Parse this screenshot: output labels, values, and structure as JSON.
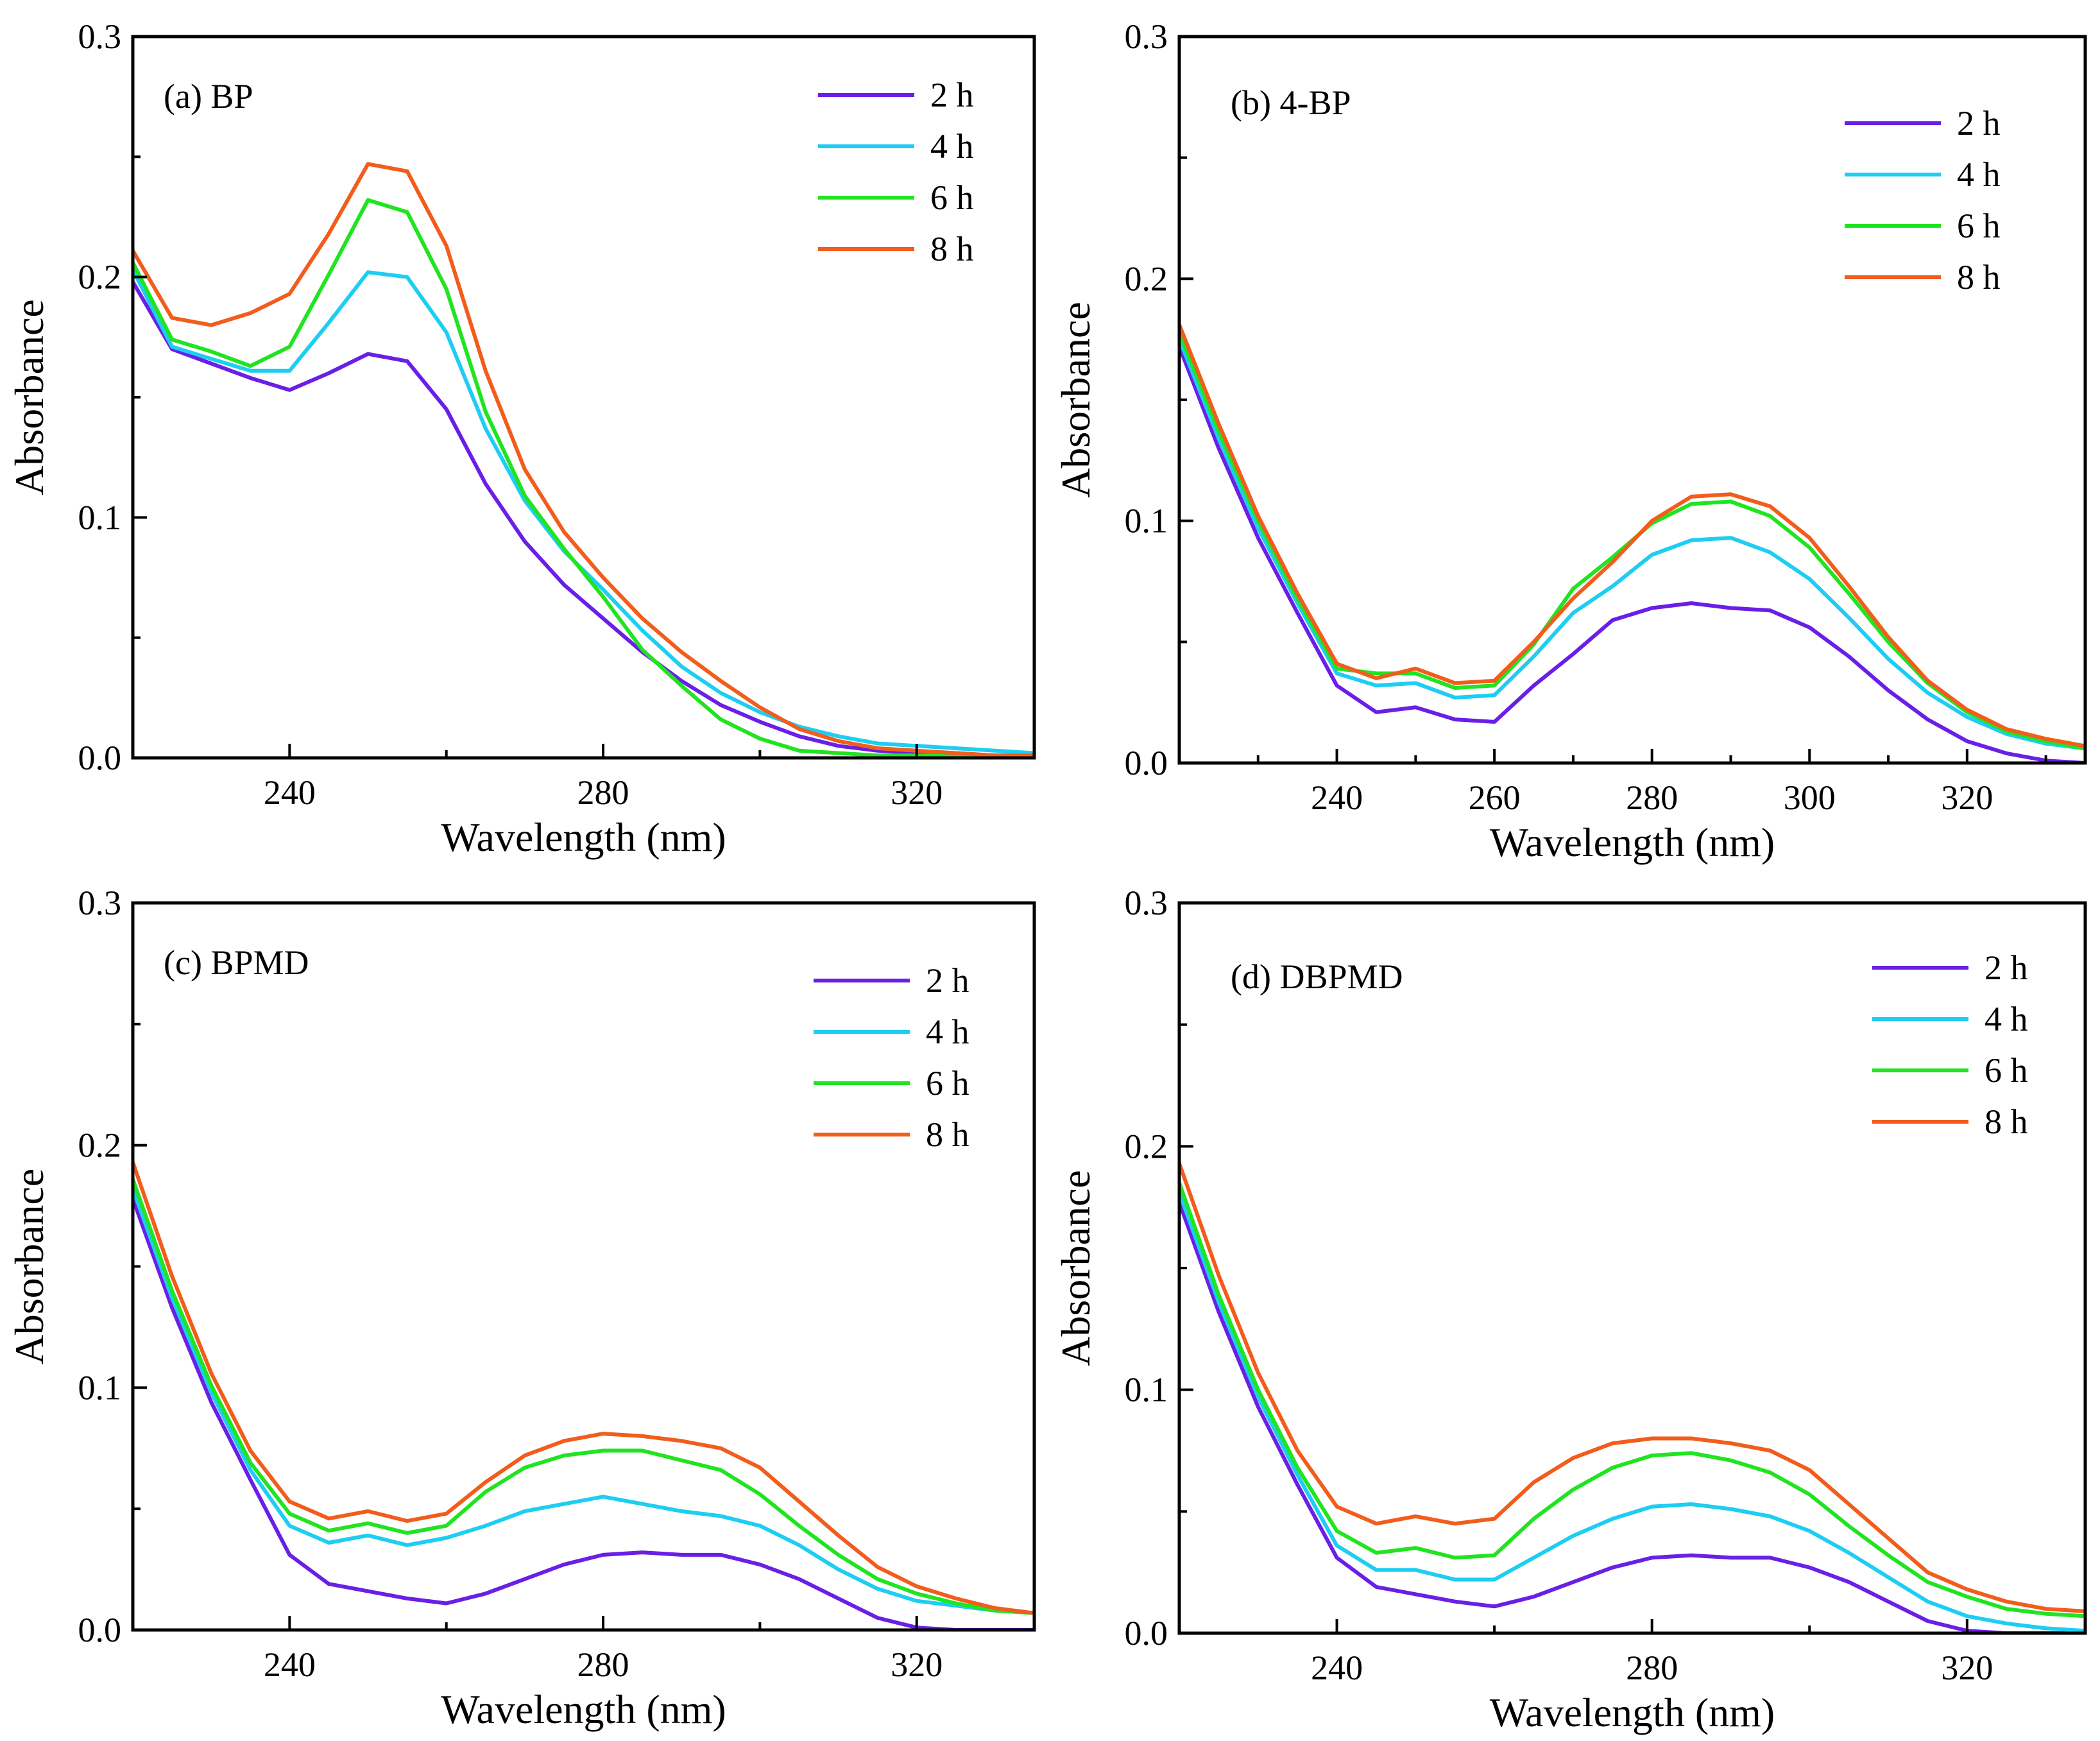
{
  "chart_data": [
    {
      "type": "line",
      "title": "(a) BP",
      "xlabel": "Wavelength (nm)",
      "ylabel": "Absorbance",
      "xlim": [
        220,
        335
      ],
      "ylim": [
        0,
        0.3
      ],
      "xticks": [
        240,
        280,
        320
      ],
      "xtick_labels": [
        "240",
        "280",
        "320"
      ],
      "yticks": [
        0,
        0.1,
        0.2,
        0.3
      ],
      "ytick_labels": [
        "0.0",
        "0.1",
        "0.2",
        "0.3"
      ],
      "legend_position": "top-right",
      "x": [
        220,
        225,
        230,
        235,
        240,
        245,
        250,
        255,
        260,
        265,
        270,
        275,
        280,
        285,
        290,
        295,
        300,
        305,
        310,
        315,
        320,
        325,
        330,
        335
      ],
      "series": [
        {
          "name": "2 h",
          "color": "#6a1fe6",
          "values": [
            0.198,
            0.17,
            0.164,
            0.158,
            0.153,
            0.16,
            0.168,
            0.165,
            0.145,
            0.114,
            0.09,
            0.072,
            0.058,
            0.044,
            0.032,
            0.022,
            0.015,
            0.009,
            0.005,
            0.003,
            0.002,
            0.002,
            0.001,
            0.001
          ]
        },
        {
          "name": "4 h",
          "color": "#1ecdf2",
          "values": [
            0.203,
            0.171,
            0.166,
            0.161,
            0.161,
            0.181,
            0.202,
            0.2,
            0.177,
            0.137,
            0.107,
            0.086,
            0.07,
            0.053,
            0.038,
            0.027,
            0.019,
            0.013,
            0.009,
            0.006,
            0.005,
            0.004,
            0.003,
            0.002
          ]
        },
        {
          "name": "6 h",
          "color": "#21e421",
          "values": [
            0.206,
            0.174,
            0.169,
            0.163,
            0.171,
            0.201,
            0.232,
            0.227,
            0.195,
            0.144,
            0.109,
            0.087,
            0.067,
            0.045,
            0.03,
            0.016,
            0.008,
            0.003,
            0.002,
            0.001,
            0.001,
            0.001,
            0.0,
            0.0
          ]
        },
        {
          "name": "8 h",
          "color": "#f25c1c",
          "values": [
            0.211,
            0.183,
            0.18,
            0.185,
            0.193,
            0.218,
            0.247,
            0.244,
            0.213,
            0.161,
            0.12,
            0.094,
            0.075,
            0.058,
            0.044,
            0.032,
            0.021,
            0.012,
            0.007,
            0.004,
            0.003,
            0.002,
            0.001,
            0.001
          ]
        }
      ]
    },
    {
      "type": "line",
      "title": "(b) 4-BP",
      "xlabel": "Wavelength (nm)",
      "ylabel": "Absorbance",
      "xlim": [
        220,
        335
      ],
      "ylim": [
        0,
        0.3
      ],
      "xticks": [
        240,
        260,
        280,
        300,
        320
      ],
      "xtick_labels": [
        "240",
        "260",
        "280",
        "300",
        "320"
      ],
      "yticks": [
        0,
        0.1,
        0.2,
        0.3
      ],
      "ytick_labels": [
        "0.0",
        "0.1",
        "0.2",
        "0.3"
      ],
      "legend_position": "top-right",
      "x": [
        220,
        225,
        230,
        235,
        240,
        245,
        250,
        255,
        260,
        265,
        270,
        275,
        280,
        285,
        290,
        295,
        300,
        305,
        310,
        315,
        320,
        325,
        330,
        335
      ],
      "series": [
        {
          "name": "2 h",
          "color": "#6a1fe6",
          "values": [
            0.172,
            0.13,
            0.093,
            0.062,
            0.032,
            0.021,
            0.023,
            0.018,
            0.017,
            0.032,
            0.045,
            0.059,
            0.064,
            0.066,
            0.064,
            0.063,
            0.056,
            0.044,
            0.03,
            0.018,
            0.009,
            0.004,
            0.001,
            0.0
          ]
        },
        {
          "name": "4 h",
          "color": "#1ecdf2",
          "values": [
            0.175,
            0.134,
            0.097,
            0.066,
            0.037,
            0.032,
            0.033,
            0.027,
            0.028,
            0.044,
            0.062,
            0.073,
            0.086,
            0.092,
            0.093,
            0.087,
            0.076,
            0.06,
            0.043,
            0.029,
            0.019,
            0.012,
            0.008,
            0.006
          ]
        },
        {
          "name": "6 h",
          "color": "#21e421",
          "values": [
            0.178,
            0.137,
            0.1,
            0.068,
            0.039,
            0.037,
            0.037,
            0.031,
            0.032,
            0.049,
            0.072,
            0.085,
            0.099,
            0.107,
            0.108,
            0.102,
            0.089,
            0.07,
            0.05,
            0.033,
            0.021,
            0.013,
            0.009,
            0.006
          ]
        },
        {
          "name": "8 h",
          "color": "#f25c1c",
          "values": [
            0.181,
            0.14,
            0.102,
            0.07,
            0.041,
            0.035,
            0.039,
            0.033,
            0.034,
            0.05,
            0.068,
            0.083,
            0.1,
            0.11,
            0.111,
            0.106,
            0.093,
            0.073,
            0.052,
            0.034,
            0.022,
            0.014,
            0.01,
            0.007
          ]
        }
      ]
    },
    {
      "type": "line",
      "title": "(c) BPMD",
      "xlabel": "Wavelength (nm)",
      "ylabel": "Absorbance",
      "xlim": [
        220,
        335
      ],
      "ylim": [
        0,
        0.3
      ],
      "xticks": [
        240,
        280,
        320
      ],
      "xtick_labels": [
        "240",
        "280",
        "320"
      ],
      "yticks": [
        0,
        0.1,
        0.2,
        0.3
      ],
      "ytick_labels": [
        "0.0",
        "0.1",
        "0.2",
        "0.3"
      ],
      "legend_position": "top-right",
      "x": [
        220,
        225,
        230,
        235,
        240,
        245,
        250,
        255,
        260,
        265,
        270,
        275,
        280,
        285,
        290,
        295,
        300,
        305,
        310,
        315,
        320,
        325,
        330,
        335
      ],
      "series": [
        {
          "name": "2 h",
          "color": "#6a1fe6",
          "values": [
            0.178,
            0.133,
            0.094,
            0.062,
            0.031,
            0.019,
            0.016,
            0.013,
            0.011,
            0.015,
            0.021,
            0.027,
            0.031,
            0.032,
            0.031,
            0.031,
            0.027,
            0.021,
            0.013,
            0.005,
            0.001,
            0.0,
            0.0,
            0.0
          ]
        },
        {
          "name": "4 h",
          "color": "#1ecdf2",
          "values": [
            0.182,
            0.137,
            0.098,
            0.066,
            0.043,
            0.036,
            0.039,
            0.035,
            0.038,
            0.043,
            0.049,
            0.052,
            0.055,
            0.052,
            0.049,
            0.047,
            0.043,
            0.035,
            0.025,
            0.017,
            0.012,
            0.01,
            0.008,
            0.007
          ]
        },
        {
          "name": "6 h",
          "color": "#21e421",
          "values": [
            0.186,
            0.14,
            0.101,
            0.069,
            0.048,
            0.041,
            0.044,
            0.04,
            0.043,
            0.057,
            0.067,
            0.072,
            0.074,
            0.074,
            0.07,
            0.066,
            0.056,
            0.043,
            0.031,
            0.021,
            0.015,
            0.011,
            0.008,
            0.007
          ]
        },
        {
          "name": "8 h",
          "color": "#f25c1c",
          "values": [
            0.193,
            0.146,
            0.106,
            0.074,
            0.053,
            0.046,
            0.049,
            0.045,
            0.048,
            0.061,
            0.072,
            0.078,
            0.081,
            0.08,
            0.078,
            0.075,
            0.067,
            0.053,
            0.039,
            0.026,
            0.018,
            0.013,
            0.009,
            0.007
          ]
        }
      ]
    },
    {
      "type": "line",
      "title": "(d) DBPMD",
      "xlabel": "Wavelength (nm)",
      "ylabel": "Absorbance",
      "xlim": [
        220,
        335
      ],
      "ylim": [
        0,
        0.3
      ],
      "xticks": [
        240,
        280,
        320
      ],
      "xtick_labels": [
        "240",
        "280",
        "320"
      ],
      "yticks": [
        0,
        0.1,
        0.2,
        0.3
      ],
      "ytick_labels": [
        "0.0",
        "0.1",
        "0.2",
        "0.3"
      ],
      "legend_position": "top-right",
      "x": [
        220,
        225,
        230,
        235,
        240,
        245,
        250,
        255,
        260,
        265,
        270,
        275,
        280,
        285,
        290,
        295,
        300,
        305,
        310,
        315,
        320,
        325,
        330,
        335
      ],
      "series": [
        {
          "name": "2 h",
          "color": "#6a1fe6",
          "values": [
            0.177,
            0.132,
            0.093,
            0.061,
            0.031,
            0.019,
            0.016,
            0.013,
            0.011,
            0.015,
            0.021,
            0.027,
            0.031,
            0.032,
            0.031,
            0.031,
            0.027,
            0.021,
            0.013,
            0.005,
            0.001,
            0.0,
            0.0,
            0.0
          ]
        },
        {
          "name": "4 h",
          "color": "#1ecdf2",
          "values": [
            0.181,
            0.136,
            0.097,
            0.065,
            0.036,
            0.026,
            0.026,
            0.022,
            0.022,
            0.031,
            0.04,
            0.047,
            0.052,
            0.053,
            0.051,
            0.048,
            0.042,
            0.033,
            0.023,
            0.013,
            0.007,
            0.004,
            0.002,
            0.001
          ]
        },
        {
          "name": "6 h",
          "color": "#21e421",
          "values": [
            0.185,
            0.139,
            0.1,
            0.068,
            0.042,
            0.033,
            0.035,
            0.031,
            0.032,
            0.047,
            0.059,
            0.068,
            0.073,
            0.074,
            0.071,
            0.066,
            0.057,
            0.044,
            0.032,
            0.021,
            0.015,
            0.01,
            0.008,
            0.007
          ]
        },
        {
          "name": "8 h",
          "color": "#f25c1c",
          "values": [
            0.193,
            0.147,
            0.107,
            0.075,
            0.052,
            0.045,
            0.048,
            0.045,
            0.047,
            0.062,
            0.072,
            0.078,
            0.08,
            0.08,
            0.078,
            0.075,
            0.067,
            0.053,
            0.039,
            0.025,
            0.018,
            0.013,
            0.01,
            0.009
          ]
        }
      ]
    }
  ]
}
